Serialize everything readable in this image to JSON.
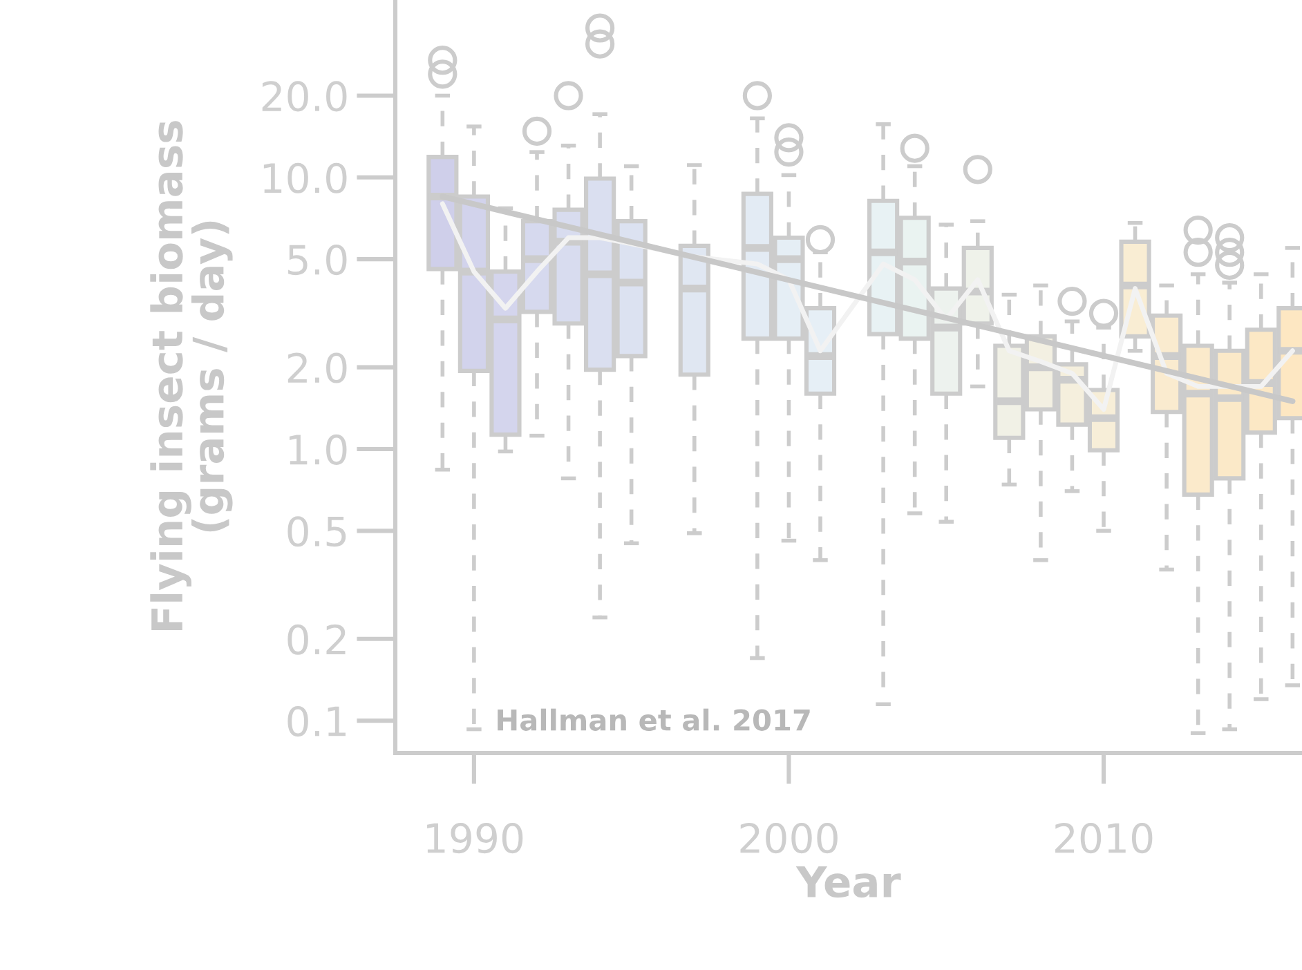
{
  "chart_data": {
    "type": "box",
    "xlabel": "Year",
    "ylabel": "Flying insect biomass\n(grams / day)",
    "annotations": [
      "Hallman et al. 2017"
    ],
    "log": true,
    "xlim": [
      1987.5,
      2016.3
    ],
    "ylim": [
      0.076,
      45
    ],
    "xticks": [
      1990,
      2000,
      2010
    ],
    "yticks": [
      {
        "value": 0.1,
        "label": "0.1"
      },
      {
        "value": 0.2,
        "label": "0.2"
      },
      {
        "value": 0.5,
        "label": "0.5"
      },
      {
        "value": 1,
        "label": "1.0"
      },
      {
        "value": 2,
        "label": "2.0"
      },
      {
        "value": 5,
        "label": "5.0"
      },
      {
        "value": 10,
        "label": "10.0"
      },
      {
        "value": 20,
        "label": "20.0"
      }
    ],
    "x": [
      1989,
      1990,
      1991,
      1992,
      1993,
      1994,
      1995,
      1997,
      1999,
      2000,
      2001,
      2003,
      2004,
      2005,
      2006,
      2007,
      2008,
      2009,
      2010,
      2011,
      2012,
      2013,
      2014,
      2015,
      2016
    ],
    "colors": [
      "#cfcfea",
      "#d2d3ec",
      "#d4d5ed",
      "#d6d9ee",
      "#d8dcef",
      "#dadff0",
      "#dce2f1",
      "#e0e7f2",
      "#e3ebf4",
      "#e5eef5",
      "#e6eff6",
      "#e8f2f4",
      "#eaf3f1",
      "#edf2ee",
      "#eff2ea",
      "#f1f1e6",
      "#f3f0e2",
      "#f5efdd",
      "#f7eed8",
      "#f9edd3",
      "#faebcf",
      "#fbeacb",
      "#fbe9c8",
      "#fce8c5",
      "#fde7c2"
    ],
    "boxes": [
      {
        "low": 0.84,
        "q1": 4.6,
        "median": 8.5,
        "q3": 11.9,
        "high": 20,
        "outliers": [
          24,
          27
        ]
      },
      {
        "low": 0.093,
        "q1": 1.94,
        "median": 4.5,
        "q3": 8.5,
        "high": 15.4
      },
      {
        "low": 0.98,
        "q1": 1.13,
        "median": 3.0,
        "q3": 4.5,
        "high": 7.7
      },
      {
        "low": 1.12,
        "q1": 3.2,
        "median": 5.0,
        "q3": 6.9,
        "high": 12.4,
        "outliers": [
          14.8
        ]
      },
      {
        "low": 0.78,
        "q1": 2.9,
        "median": 5.8,
        "q3": 7.6,
        "high": 13.1,
        "outliers": [
          20
        ]
      },
      {
        "low": 0.24,
        "q1": 1.96,
        "median": 4.4,
        "q3": 9.9,
        "high": 17.1,
        "outliers": [
          31,
          35.5
        ]
      },
      {
        "low": 0.45,
        "q1": 2.2,
        "median": 4.1,
        "q3": 6.9,
        "high": 11
      },
      {
        "low": 0.49,
        "q1": 1.88,
        "median": 3.9,
        "q3": 5.6,
        "high": 11.1
      },
      {
        "low": 0.17,
        "q1": 2.55,
        "median": 5.5,
        "q3": 8.7,
        "high": 16.5,
        "outliers": [
          20
        ]
      },
      {
        "low": 0.46,
        "q1": 2.55,
        "median": 5.0,
        "q3": 6.0,
        "high": 10.2,
        "outliers": [
          12.4,
          14
        ]
      },
      {
        "low": 0.39,
        "q1": 1.6,
        "median": 2.2,
        "q3": 3.3,
        "high": 5.3,
        "outliers": [
          5.9
        ]
      },
      {
        "low": 0.115,
        "q1": 2.65,
        "median": 5.3,
        "q3": 8.2,
        "high": 15.7
      },
      {
        "low": 0.58,
        "q1": 2.55,
        "median": 4.9,
        "q3": 7.1,
        "high": 11,
        "outliers": [
          12.8
        ]
      },
      {
        "low": 0.54,
        "q1": 1.6,
        "median": 2.8,
        "q3": 3.9,
        "high": 6.7
      },
      {
        "low": 1.7,
        "q1": 2.9,
        "median": 3.8,
        "q3": 5.5,
        "high": 6.9,
        "outliers": [
          10.7
        ]
      },
      {
        "low": 0.74,
        "q1": 1.1,
        "median": 1.5,
        "q3": 2.4,
        "high": 3.7
      },
      {
        "low": 0.39,
        "q1": 1.4,
        "median": 2.0,
        "q3": 2.6,
        "high": 4.0
      },
      {
        "low": 0.7,
        "q1": 1.23,
        "median": 1.8,
        "q3": 2.05,
        "high": 2.95,
        "outliers": [
          3.5
        ]
      },
      {
        "low": 0.5,
        "q1": 0.99,
        "median": 1.3,
        "q3": 1.65,
        "high": 2.8,
        "outliers": [
          3.16
        ]
      },
      {
        "low": 2.3,
        "q1": 2.6,
        "median": 4.0,
        "q3": 5.8,
        "high": 6.8
      },
      {
        "low": 0.36,
        "q1": 1.37,
        "median": 2.2,
        "q3": 3.1,
        "high": 4.0
      },
      {
        "low": 0.09,
        "q1": 0.68,
        "median": 1.6,
        "q3": 2.4,
        "high": 4.4,
        "outliers": [
          5.3,
          6.4
        ]
      },
      {
        "low": 0.093,
        "q1": 0.78,
        "median": 1.54,
        "q3": 2.3,
        "high": 4.1,
        "outliers": [
          4.75,
          5.3,
          6.0
        ]
      },
      {
        "low": 0.12,
        "q1": 1.15,
        "median": 1.75,
        "q3": 2.75,
        "high": 4.4
      },
      {
        "low": 0.135,
        "q1": 1.3,
        "median": 2.3,
        "q3": 3.3,
        "high": 5.5
      }
    ],
    "series": [
      {
        "type": "line",
        "color": "#f2f2f2",
        "x": [
          1989,
          1990,
          1991,
          1992,
          1993,
          1994,
          1995,
          1997,
          1999,
          2000,
          2001,
          2003,
          2004,
          2005,
          2006,
          2007,
          2008,
          2009,
          2010,
          2011,
          2012,
          2013,
          2014,
          2015,
          2016
        ],
        "values": [
          8,
          4.5,
          3.3,
          4.5,
          6,
          6,
          5.7,
          5.1,
          4.8,
          4.2,
          2.3,
          4.8,
          4.2,
          3.0,
          4.2,
          2.3,
          2.1,
          1.9,
          1.4,
          3.9,
          1.9,
          1.7,
          1.7,
          1.7,
          2.3
        ]
      },
      {
        "type": "line",
        "color": "#c8c8c8",
        "x": [
          1989,
          2016
        ],
        "values": [
          8.5,
          1.5
        ]
      }
    ]
  }
}
